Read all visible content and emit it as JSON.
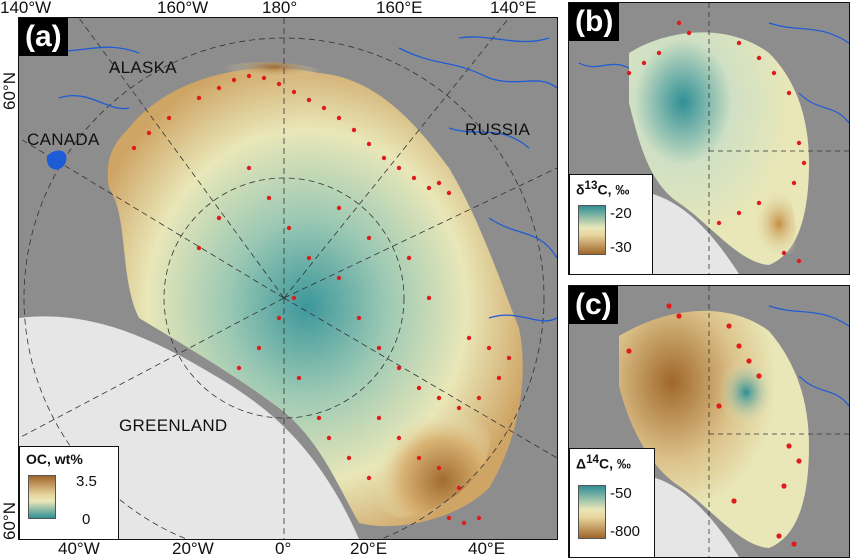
{
  "panels": {
    "a": {
      "tag": "(a)"
    },
    "b": {
      "tag": "(b)"
    },
    "c": {
      "tag": "(c)"
    }
  },
  "regions": {
    "alaska": "ALASKA",
    "canada": "CANADA",
    "russia": "RUSSIA",
    "greenland": "GREENLAND"
  },
  "legends": {
    "oc": {
      "title": "OC, wt%",
      "max": "3.5",
      "min": "0"
    },
    "d13c": {
      "title_prefix": "δ",
      "title_sup": "13",
      "title_suffix": "C, ‰",
      "max": "-20",
      "min": "-30"
    },
    "D14c": {
      "title_prefix": "Δ",
      "title_sup": "14",
      "title_suffix": "C, ‰",
      "max": "-50",
      "min": "-800"
    }
  },
  "axes": {
    "top": [
      "140°W",
      "160°W",
      "180°",
      "160°E",
      "140°E"
    ],
    "bottom": [
      "40°W",
      "20°W",
      "0°",
      "20°E",
      "40°E"
    ],
    "left": [
      "60°N",
      "60°N"
    ]
  },
  "colors": {
    "land": "#8d8d8d",
    "ice": "#e6e6e6",
    "rivers": "#1e5bd6",
    "samples": "#e01b1b",
    "oc_high": "#a0672a",
    "oc_mid": "#e9e7b8",
    "oc_low": "#2f8f96"
  }
}
